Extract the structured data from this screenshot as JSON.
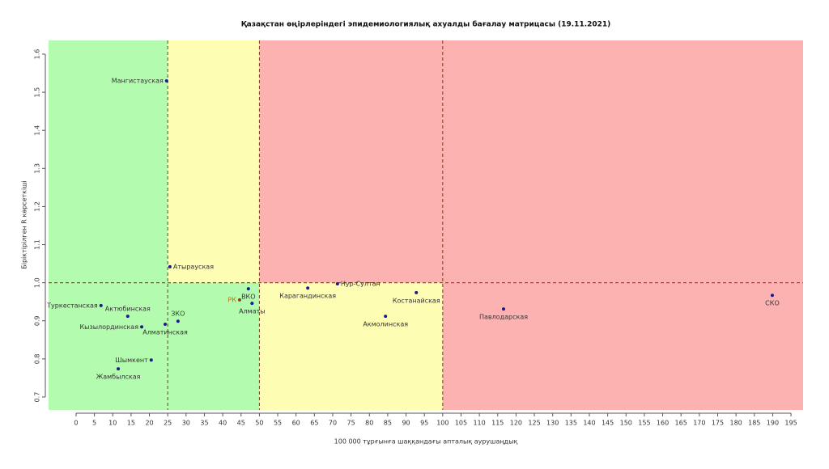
{
  "chart_data": {
    "type": "scatter",
    "title": "Қазақстан өңірлеріндегі эпидемиологиялық ахуалды бағалау матрицасы  (19.11.2021)",
    "x_label": "100 000 тұрғынға шаққандағы апталық аурушаңдық",
    "y_label": "Біріктірілген R көрсеткіші",
    "xlim": [
      -7.5,
      198.3
    ],
    "ylim": [
      0.666,
      1.636
    ],
    "xticks": [
      0,
      5,
      10,
      15,
      20,
      25,
      30,
      35,
      40,
      45,
      50,
      55,
      60,
      65,
      70,
      75,
      80,
      85,
      90,
      95,
      100,
      105,
      110,
      115,
      120,
      125,
      130,
      135,
      140,
      145,
      150,
      155,
      160,
      165,
      170,
      175,
      180,
      185,
      190,
      195
    ],
    "yticks": [
      0.7,
      0.8,
      0.9,
      {
        "value": 1,
        "label": "1.0"
      },
      1.1,
      1.2,
      1.3,
      1.4,
      1.5,
      1.6
    ],
    "x_thresholds": [
      25,
      50,
      100
    ],
    "y_threshold": 1,
    "region_colors_above": [
      "#b3fbae",
      "#fdfdb3",
      "#fdb2b2",
      "#fdb2b2"
    ],
    "region_colors_below": [
      "#b3fbae",
      "#b3fbae",
      "#fdfdb3",
      "#fdb2b2"
    ],
    "threshold_color": "#c0392b",
    "labels": [
      "Мангистауская",
      "Атырауская",
      "ВКО",
      "РК",
      "Алматы",
      "Туркестанская",
      "Актюбинская",
      "Кызылординская",
      "Алматинская",
      "ЗКО",
      "Шымкент",
      "Жамбылская",
      "Карагандинская",
      "Нур-Султан",
      "Костанайская",
      "Акмолинская",
      "Павлодарская",
      "СКО"
    ],
    "x": [
      24.7,
      25.6,
      47.0,
      44.6,
      48.0,
      6.8,
      14.1,
      17.9,
      24.3,
      27.8,
      20.5,
      11.5,
      63.2,
      71.3,
      92.8,
      84.4,
      116.6,
      189.9
    ],
    "y": [
      1.53,
      1.042,
      0.984,
      0.955,
      0.946,
      0.94,
      0.912,
      0.884,
      0.891,
      0.899,
      0.797,
      0.774,
      0.986,
      0.997,
      0.974,
      0.912,
      0.931,
      0.967
    ],
    "point_colors": [
      "#1a1a8b",
      "#1a1a8b",
      "#1a1a8b",
      "#8b4513",
      "#1a1a8b",
      "#1a1a8b",
      "#1a1a8b",
      "#1a1a8b",
      "#1a1a8b",
      "#1a1a8b",
      "#1a1a8b",
      "#1a1a8b",
      "#1a1a8b",
      "#1a1a8b",
      "#1a1a8b",
      "#1a1a8b",
      "#1a1a8b",
      "#1a1a8b"
    ],
    "label_colors": [
      "#333",
      "#333",
      "#333",
      "#c0701a",
      "#333",
      "#333",
      "#333",
      "#333",
      "#333",
      "#333",
      "#333",
      "#333",
      "#333",
      "#333",
      "#333",
      "#333",
      "#333",
      "#333"
    ]
  }
}
